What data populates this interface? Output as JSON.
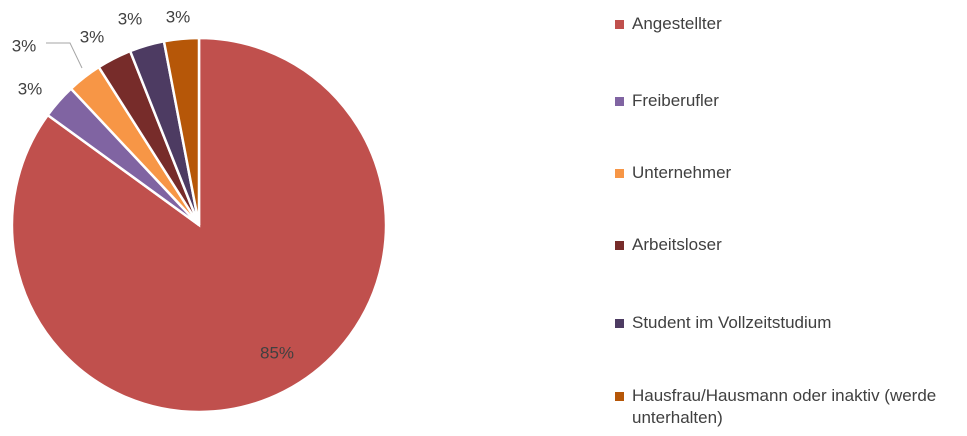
{
  "chart_data": {
    "type": "pie",
    "categories": [
      "Angestellter",
      "Freiberufler",
      "Unternehmer",
      "Arbeitsloser",
      "Student im Vollzeitstudium",
      "Hausfrau/Hausmann oder inaktiv (werde unterhalten)"
    ],
    "values": [
      85,
      3,
      3,
      3,
      3,
      3
    ],
    "value_labels": [
      "85%",
      "3%",
      "3%",
      "3%",
      "3%",
      "3%"
    ],
    "colors": [
      "#c0504d",
      "#8064a2",
      "#f79646",
      "#772c2a",
      "#4d3b62",
      "#b65708"
    ],
    "legend": "right"
  }
}
